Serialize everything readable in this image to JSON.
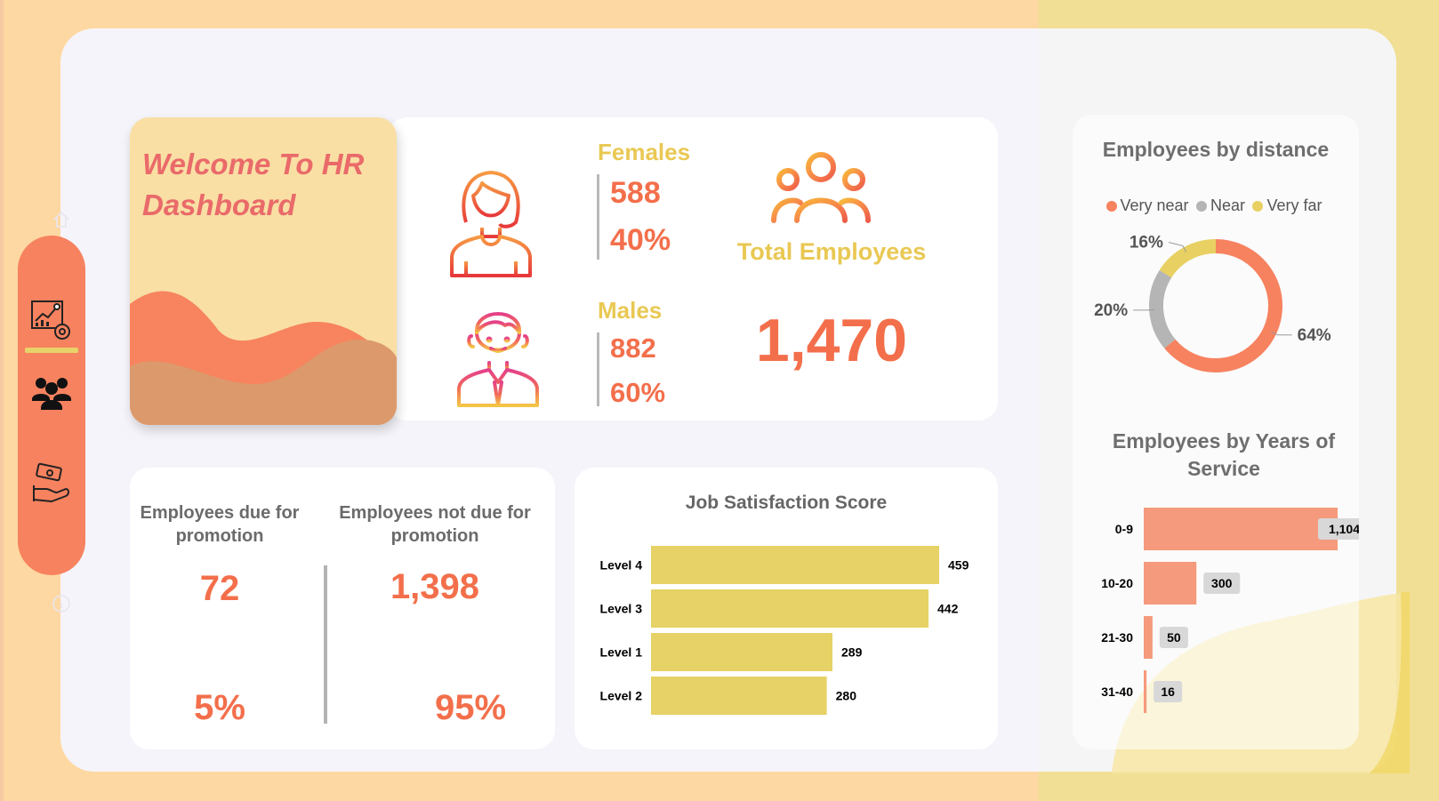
{
  "colors": {
    "accent_orange": "#f36f4b",
    "gold": "#e9c853",
    "bar_yellow": "#e6d266",
    "bar_salmon": "#f59a7c",
    "donut_orange": "#f7825f",
    "donut_gray": "#b5b5b5",
    "donut_yellow": "#e8d062"
  },
  "sidebar": {
    "items": [
      {
        "icon": "analytics-icon"
      },
      {
        "icon": "people-icon"
      },
      {
        "icon": "money-hand-icon"
      }
    ]
  },
  "welcome": {
    "title": "Welcome To HR Dashboard"
  },
  "females": {
    "label": "Females",
    "count": "588",
    "percent": "40%"
  },
  "males": {
    "label": "Males",
    "count": "882",
    "percent": "60%"
  },
  "total": {
    "label": "Total Employees",
    "value": "1,470"
  },
  "promotion": {
    "due_label": "Employees due for promotion",
    "due_count": "72",
    "due_percent": "5%",
    "not_due_label": "Employees not due for promotion",
    "not_due_count": "1,398",
    "not_due_percent": "95%"
  },
  "chart_data": [
    {
      "type": "bar",
      "orientation": "horizontal",
      "title": "Job Satisfaction Score",
      "categories": [
        "Level 4",
        "Level 3",
        "Level 1",
        "Level 2"
      ],
      "values": [
        459,
        442,
        289,
        280
      ],
      "xlim": [
        0,
        459
      ]
    },
    {
      "type": "pie",
      "donut": true,
      "title": "Employees by distance",
      "legend": [
        "Very near",
        "Near",
        "Very far"
      ],
      "legend_position": "top",
      "values": [
        64,
        20,
        16
      ],
      "labels": [
        "64%",
        "20%",
        "16%"
      ]
    },
    {
      "type": "bar",
      "orientation": "horizontal",
      "title": "Employees by Years of Service",
      "categories": [
        "0-9",
        "10-20",
        "21-30",
        "31-40"
      ],
      "values": [
        1104,
        300,
        50,
        16
      ],
      "value_labels": [
        "1,104",
        "300",
        "50",
        "16"
      ],
      "xlim": [
        0,
        1104
      ]
    }
  ]
}
